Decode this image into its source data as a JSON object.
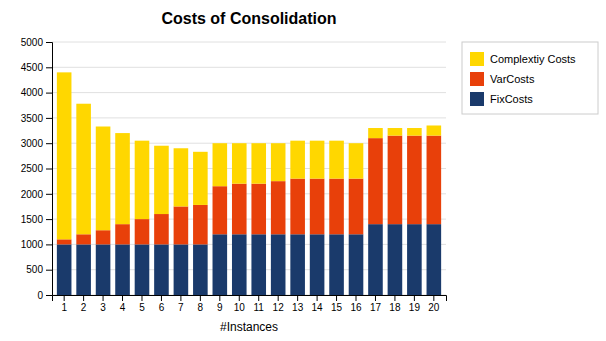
{
  "chart_data": {
    "type": "bar",
    "stacked": true,
    "title": "Costs of Consolidation",
    "xlabel": "#Instances",
    "categories": [
      1,
      2,
      3,
      4,
      5,
      6,
      7,
      8,
      9,
      10,
      11,
      12,
      13,
      14,
      15,
      16,
      17,
      18,
      19,
      20
    ],
    "series": [
      {
        "name": "FixCosts",
        "color": "#1a3a6b",
        "values": [
          1000,
          1000,
          1000,
          1000,
          1000,
          1000,
          1000,
          1000,
          1200,
          1200,
          1200,
          1200,
          1200,
          1200,
          1200,
          1200,
          1400,
          1400,
          1400,
          1400
        ]
      },
      {
        "name": "VarCosts",
        "color": "#e8400a",
        "values": [
          100,
          200,
          280,
          400,
          500,
          600,
          750,
          780,
          950,
          1000,
          1000,
          1050,
          1100,
          1100,
          1100,
          1100,
          1700,
          1750,
          1750,
          1750
        ]
      },
      {
        "name": "Complextiy Costs",
        "color": "#ffd700",
        "values": [
          3300,
          2580,
          2050,
          1800,
          1550,
          1350,
          1150,
          1050,
          850,
          800,
          800,
          750,
          750,
          750,
          750,
          700,
          200,
          150,
          150,
          200
        ]
      }
    ],
    "ylim": [
      0,
      5000
    ],
    "yticks": [
      0,
      500,
      1000,
      1500,
      2000,
      2500,
      3000,
      3500,
      4000,
      4500,
      5000
    ],
    "grid": true,
    "legend": "right"
  }
}
